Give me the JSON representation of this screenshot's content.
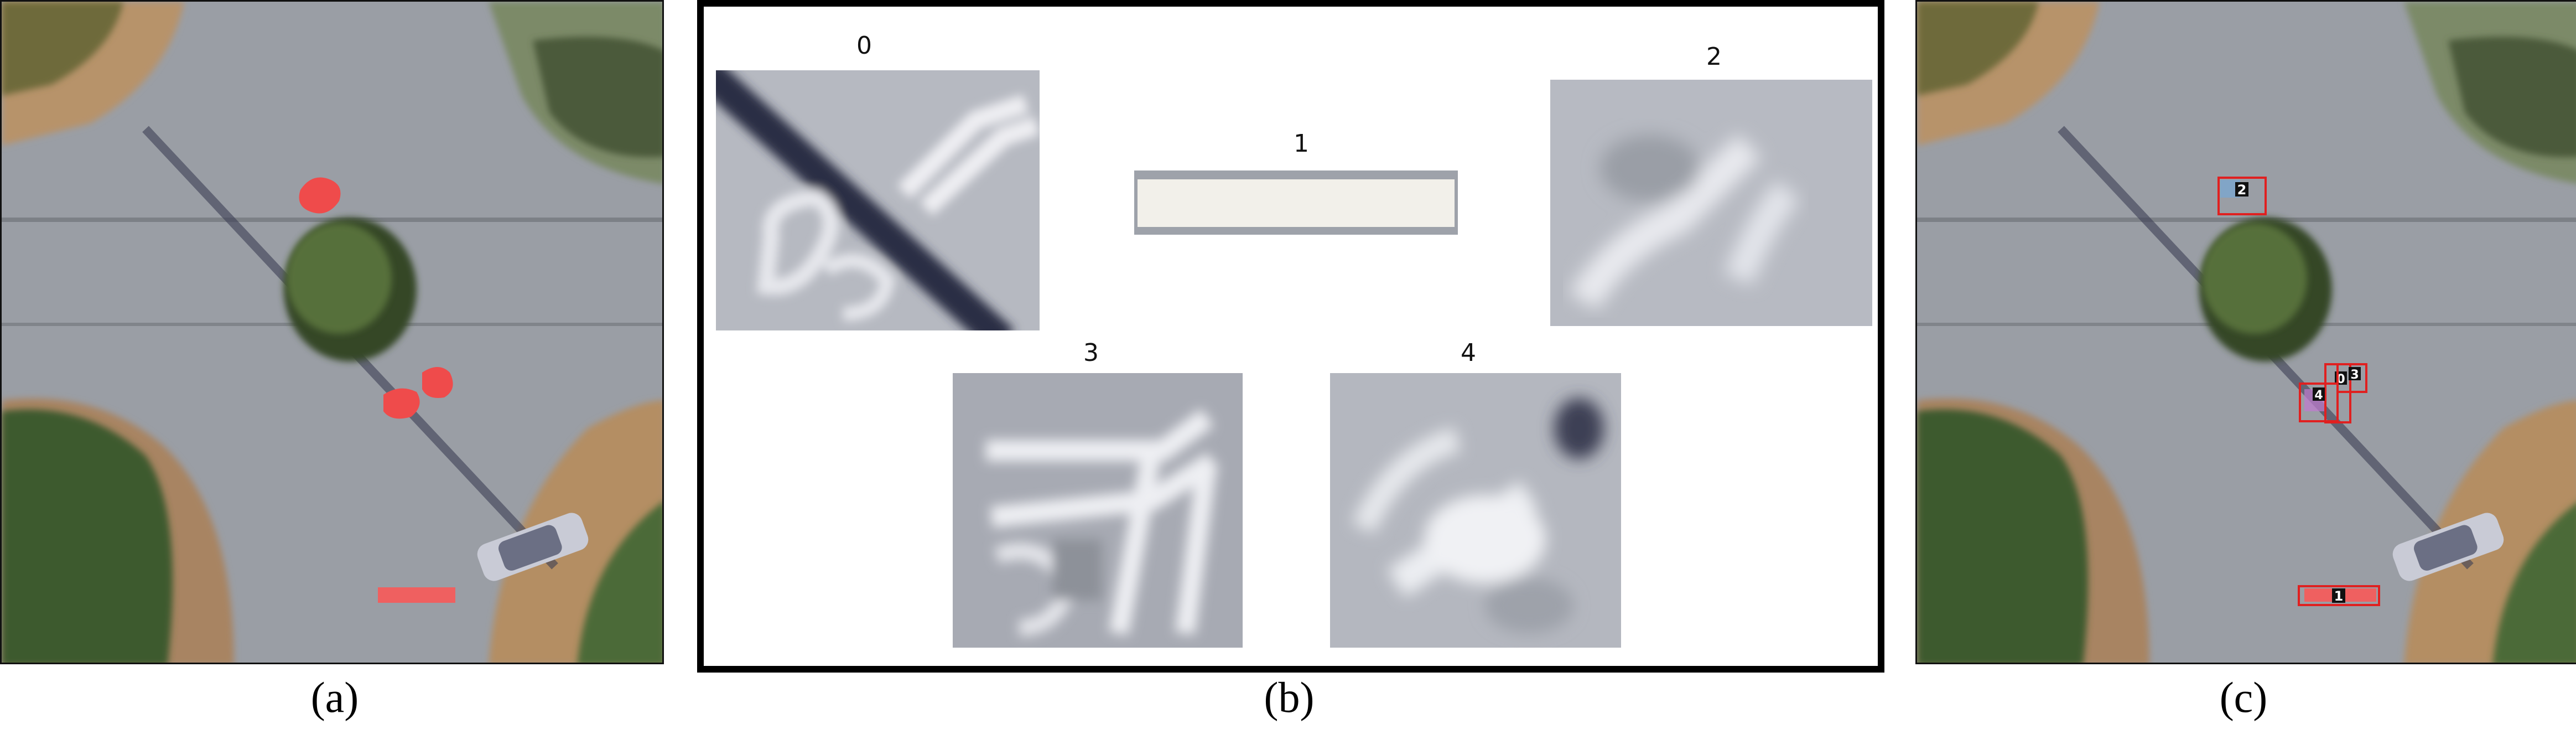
{
  "captions": {
    "a": "(a)",
    "b": "(b)",
    "c": "(c)"
  },
  "crops": [
    {
      "label": "0",
      "pattern": "arrow-on-shadow"
    },
    {
      "label": "1",
      "pattern": "white-bar"
    },
    {
      "label": "2",
      "pattern": "blurred-arrow"
    },
    {
      "label": "3",
      "pattern": "double-arrow"
    },
    {
      "label": "4",
      "pattern": "blurred-marking"
    }
  ],
  "detection_boxes": [
    {
      "label": "0"
    },
    {
      "label": "1"
    },
    {
      "label": "2"
    },
    {
      "label": "3"
    },
    {
      "label": "4"
    }
  ],
  "colors": {
    "road": "#8f939a",
    "vegetation": "#3f5a2c",
    "dirt": "#b08a5f",
    "mask_red": "#ef4b4b",
    "box_red": "#e02020"
  }
}
